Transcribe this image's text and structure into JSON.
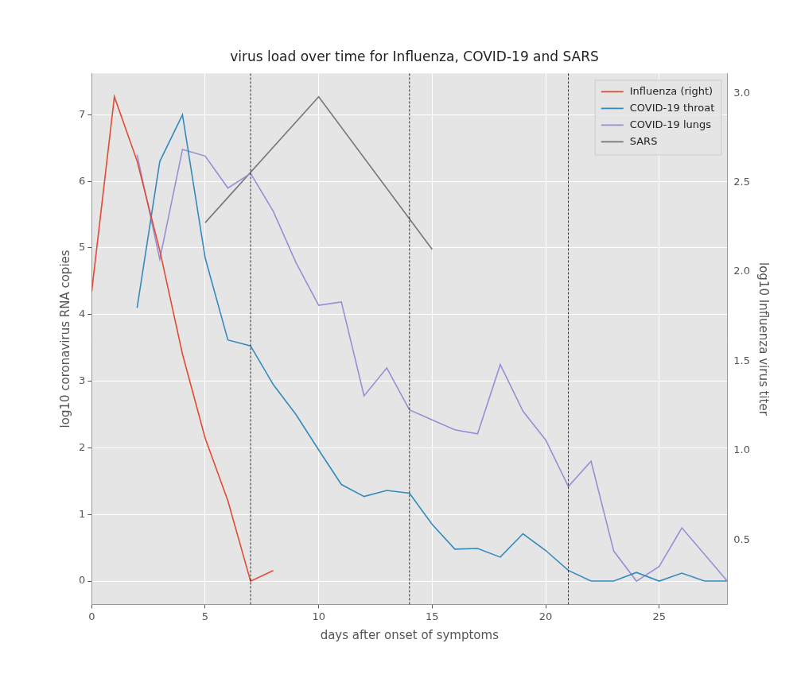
{
  "chart_data": {
    "type": "line",
    "title": "virus load over time for Influenza, COVID-19 and SARS",
    "x_label": "days after onset of symptoms",
    "y_label": "log10 coronavirus RNA copies",
    "y2_label": "log10 Influenza virus titer",
    "xlim": [
      0,
      28
    ],
    "xticks": [
      0,
      5,
      10,
      15,
      20,
      25
    ],
    "ylim": [
      -0.35,
      7.62
    ],
    "yticks": [
      0,
      1,
      2,
      3,
      4,
      5,
      6,
      7
    ],
    "y2lim": [
      0.14,
      3.11
    ],
    "y2ticks": [
      0.5,
      {
        "value": 1,
        "label": "1.0"
      },
      1.5,
      {
        "value": 2,
        "label": "2.0"
      },
      2.5,
      {
        "value": 3,
        "label": "3.0"
      }
    ],
    "grid": true,
    "legend": "upper right",
    "vlines": [
      7,
      14,
      21
    ],
    "series": [
      {
        "name": "Influenza (right)",
        "color": "#E24A33",
        "axis": "y2",
        "x": [
          0,
          1,
          2,
          3,
          4,
          5,
          6,
          7,
          8
        ],
        "values": [
          1.89,
          2.98,
          2.62,
          2.12,
          1.54,
          1.07,
          0.72,
          0.27,
          0.33
        ]
      },
      {
        "name": "COVID-19 throat",
        "color": "#348ABD",
        "x": [
          2,
          3,
          4,
          5,
          6,
          7,
          8,
          9,
          10,
          11,
          12,
          13,
          14,
          15,
          16,
          17,
          18,
          19,
          20,
          21,
          22,
          23,
          24,
          25,
          26,
          27,
          28
        ],
        "values": [
          4.1,
          6.3,
          7.0,
          4.85,
          3.62,
          3.53,
          2.95,
          2.5,
          1.97,
          1.45,
          1.27,
          1.36,
          1.32,
          0.85,
          0.48,
          0.49,
          0.36,
          0.71,
          0.46,
          0.16,
          0.0,
          0.0,
          0.13,
          0.0,
          0.12,
          0.0,
          0.0
        ]
      },
      {
        "name": "COVID-19 lungs",
        "color": "#988ED5",
        "x": [
          2,
          3,
          4,
          5,
          6,
          7,
          8,
          9,
          10,
          11,
          12,
          13,
          14,
          15,
          16,
          17,
          18,
          19,
          20,
          21,
          22,
          23,
          24,
          25,
          26,
          27,
          28
        ],
        "values": [
          6.4,
          4.83,
          6.48,
          6.38,
          5.9,
          6.12,
          5.55,
          4.78,
          4.14,
          4.19,
          2.78,
          3.2,
          2.57,
          2.42,
          2.27,
          2.21,
          3.25,
          2.55,
          2.12,
          1.42,
          1.8,
          0.45,
          0.0,
          0.22,
          0.8,
          0.4,
          0.0
        ]
      },
      {
        "name": "SARS",
        "color": "#777777",
        "x": [
          5,
          10,
          15
        ],
        "values": [
          5.38,
          7.27,
          4.98
        ]
      }
    ]
  }
}
